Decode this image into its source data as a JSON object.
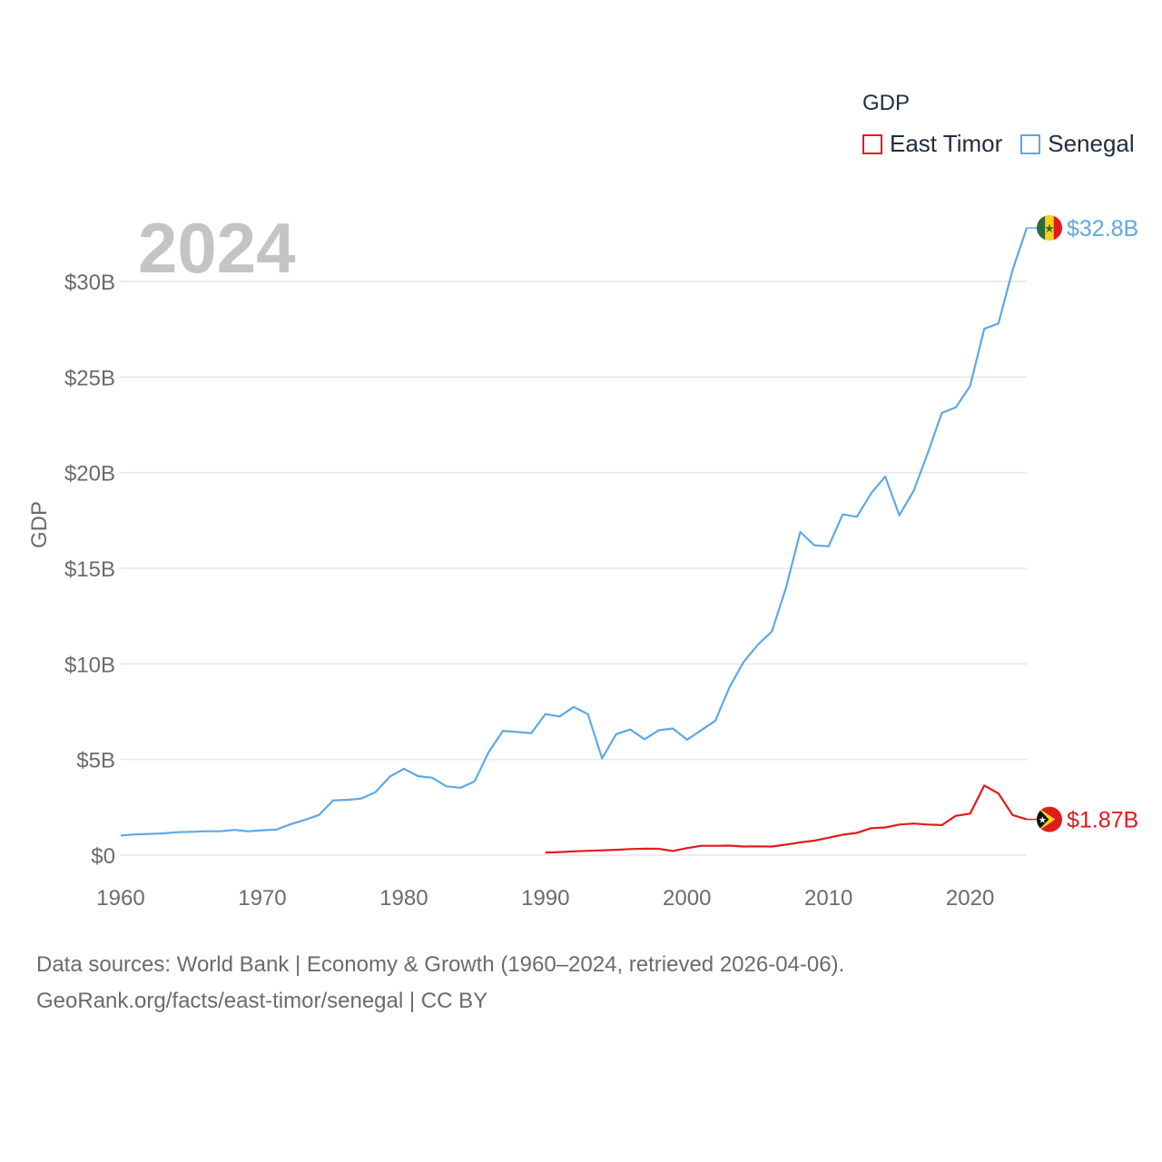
{
  "legend": {
    "title": "GDP",
    "items": [
      {
        "label": "East Timor",
        "color": "#e31a1c"
      },
      {
        "label": "Senegal",
        "color": "#5fa8e6"
      }
    ]
  },
  "year_label": "2024",
  "source": {
    "line1": "Data sources: World Bank | Economy & Growth (1960–2024, retrieved 2026-04-06).",
    "line2": "GeoRank.org/facts/east-timor/senegal | CC BY"
  },
  "chart_data": {
    "type": "line",
    "title": "GDP",
    "ylabel": "GDP",
    "xlabel": "",
    "xlim": [
      1960,
      2024
    ],
    "ylim": [
      0,
      33
    ],
    "x_ticks": [
      1960,
      1970,
      1980,
      1990,
      2000,
      2010,
      2020
    ],
    "y_ticks": [
      {
        "value": 0,
        "label": "$0"
      },
      {
        "value": 5,
        "label": "$5B"
      },
      {
        "value": 10,
        "label": "$10B"
      },
      {
        "value": 15,
        "label": "$15B"
      },
      {
        "value": 20,
        "label": "$20B"
      },
      {
        "value": 25,
        "label": "$25B"
      },
      {
        "value": 30,
        "label": "$30B"
      }
    ],
    "units": "billions USD",
    "series": [
      {
        "name": "Senegal",
        "color": "#5fa8e6",
        "end_label": "$32.8B",
        "start_year": 1960,
        "values": [
          1.03,
          1.08,
          1.11,
          1.14,
          1.2,
          1.22,
          1.25,
          1.25,
          1.32,
          1.25,
          1.3,
          1.34,
          1.62,
          1.84,
          2.1,
          2.86,
          2.89,
          2.96,
          3.3,
          4.1,
          4.52,
          4.13,
          4.05,
          3.6,
          3.52,
          3.86,
          5.4,
          6.5,
          6.44,
          6.38,
          7.38,
          7.25,
          7.75,
          7.37,
          5.06,
          6.33,
          6.57,
          6.06,
          6.53,
          6.62,
          6.04,
          6.53,
          7.02,
          8.77,
          10.1,
          11.0,
          11.7,
          14.0,
          16.9,
          16.2,
          16.15,
          17.82,
          17.69,
          18.91,
          19.8,
          17.77,
          19.04,
          21.0,
          23.12,
          23.42,
          24.53,
          27.52,
          27.8,
          30.6,
          32.8
        ]
      },
      {
        "name": "East Timor",
        "color": "#e31a1c",
        "end_label": "$1.87B",
        "start_year": 1990,
        "values": [
          0.14,
          0.16,
          0.2,
          0.23,
          0.25,
          0.28,
          0.32,
          0.34,
          0.33,
          0.22,
          0.37,
          0.49,
          0.49,
          0.5,
          0.45,
          0.46,
          0.45,
          0.55,
          0.67,
          0.76,
          0.91,
          1.07,
          1.17,
          1.41,
          1.45,
          1.6,
          1.65,
          1.6,
          1.57,
          2.06,
          2.17,
          3.64,
          3.23,
          2.1,
          1.87
        ]
      }
    ]
  }
}
